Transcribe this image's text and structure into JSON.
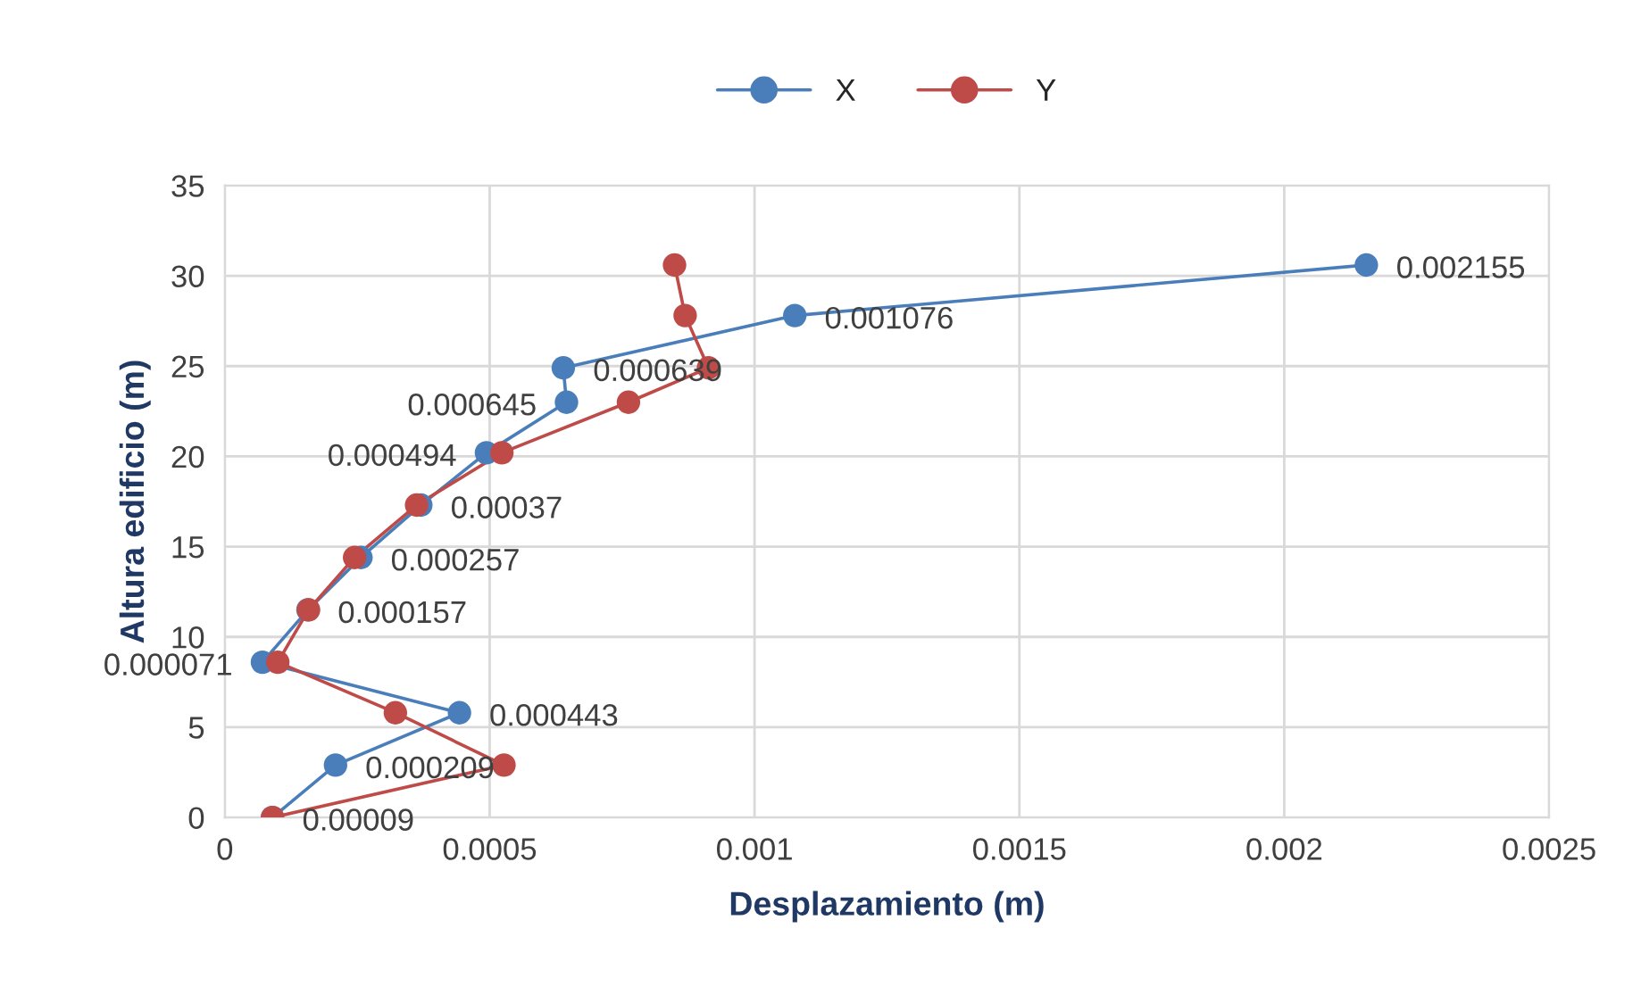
{
  "chart_data": {
    "type": "line",
    "xlabel": "Desplazamiento (m)",
    "ylabel": "Altura edificio (m)",
    "xlim": [
      0,
      0.0025
    ],
    "xticks": [
      0,
      0.0005,
      0.001,
      0.0015,
      0.002,
      0.0025
    ],
    "ylim": [
      0,
      35
    ],
    "yticks": [
      0,
      5,
      10,
      15,
      20,
      25,
      30,
      35
    ],
    "grid": true,
    "legend": "top",
    "marker": "circle",
    "line_style": "solid",
    "series": [
      {
        "name": "X",
        "color": "#4a7ebb",
        "x": [
          9e-05,
          0.000209,
          0.000443,
          7.1e-05,
          0.000157,
          0.000257,
          0.00037,
          0.000494,
          0.000645,
          0.000639,
          0.001076,
          0.002155
        ],
        "values": [
          0,
          2.9,
          5.8,
          8.6,
          11.5,
          14.4,
          17.3,
          20.2,
          23.0,
          24.9,
          27.8,
          30.6
        ]
      },
      {
        "name": "Y",
        "color": "#be4b48",
        "x": [
          9e-05,
          0.000527,
          0.000322,
          0.0001,
          0.000158,
          0.000245,
          0.000362,
          0.000523,
          0.000762,
          0.000913,
          0.000869,
          0.000849
        ],
        "values": [
          0,
          2.9,
          5.8,
          8.6,
          11.5,
          14.4,
          17.3,
          20.2,
          23.0,
          24.9,
          27.8,
          30.6
        ]
      }
    ],
    "annotations": [
      {
        "text": "0.00009",
        "x": 9e-05,
        "y": 0
      },
      {
        "text": "0.000209",
        "x": 0.000209,
        "y": 2.9
      },
      {
        "text": "0.000443",
        "x": 0.000443,
        "y": 5.8
      },
      {
        "text": "0.000071",
        "x": 7.1e-05,
        "y": 8.6
      },
      {
        "text": "0.000157",
        "x": 0.000157,
        "y": 11.5
      },
      {
        "text": "0.000257",
        "x": 0.000257,
        "y": 14.4
      },
      {
        "text": "0.00037",
        "x": 0.00037,
        "y": 17.3
      },
      {
        "text": "0.000494",
        "x": 0.000494,
        "y": 20.2
      },
      {
        "text": "0.000645",
        "x": 0.000645,
        "y": 23.0
      },
      {
        "text": "0.000639",
        "x": 0.000639,
        "y": 24.9
      },
      {
        "text": "0.001076",
        "x": 0.001076,
        "y": 27.8
      },
      {
        "text": "0.002155",
        "x": 0.002155,
        "y": 30.6
      }
    ]
  }
}
